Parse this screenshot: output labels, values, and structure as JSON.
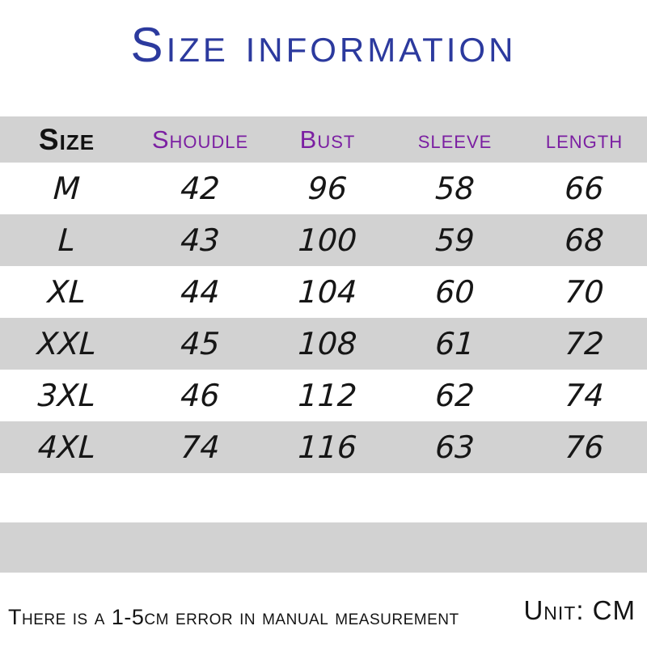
{
  "title": "Size information",
  "colors": {
    "title_blue": "#2c3a9e",
    "header_purple": "#7b1fa2",
    "band_gray": "#d2d2d2",
    "text_black": "#141414"
  },
  "footer": {
    "note": "There is a 1-5cm error in manual measurement",
    "unit": "Unit: CM"
  },
  "chart_data": {
    "type": "table",
    "title": "Size information",
    "columns": [
      "Size",
      "Shoudle",
      "Bust",
      "sleeve",
      "length"
    ],
    "rows": [
      [
        "M",
        "42",
        "96",
        "58",
        "66"
      ],
      [
        "L",
        "43",
        "100",
        "59",
        "68"
      ],
      [
        "XL",
        "44",
        "104",
        "60",
        "70"
      ],
      [
        "XXL",
        "45",
        "108",
        "61",
        "72"
      ],
      [
        "3XL",
        "46",
        "112",
        "62",
        "74"
      ],
      [
        "4XL",
        "74",
        "116",
        "63",
        "76"
      ]
    ],
    "unit": "CM",
    "note": "There is a 1-5cm error in manual measurement",
    "layout": {
      "striped": true,
      "stripe_color": "#d2d2d2",
      "header_background": "#d2d2d2"
    }
  }
}
